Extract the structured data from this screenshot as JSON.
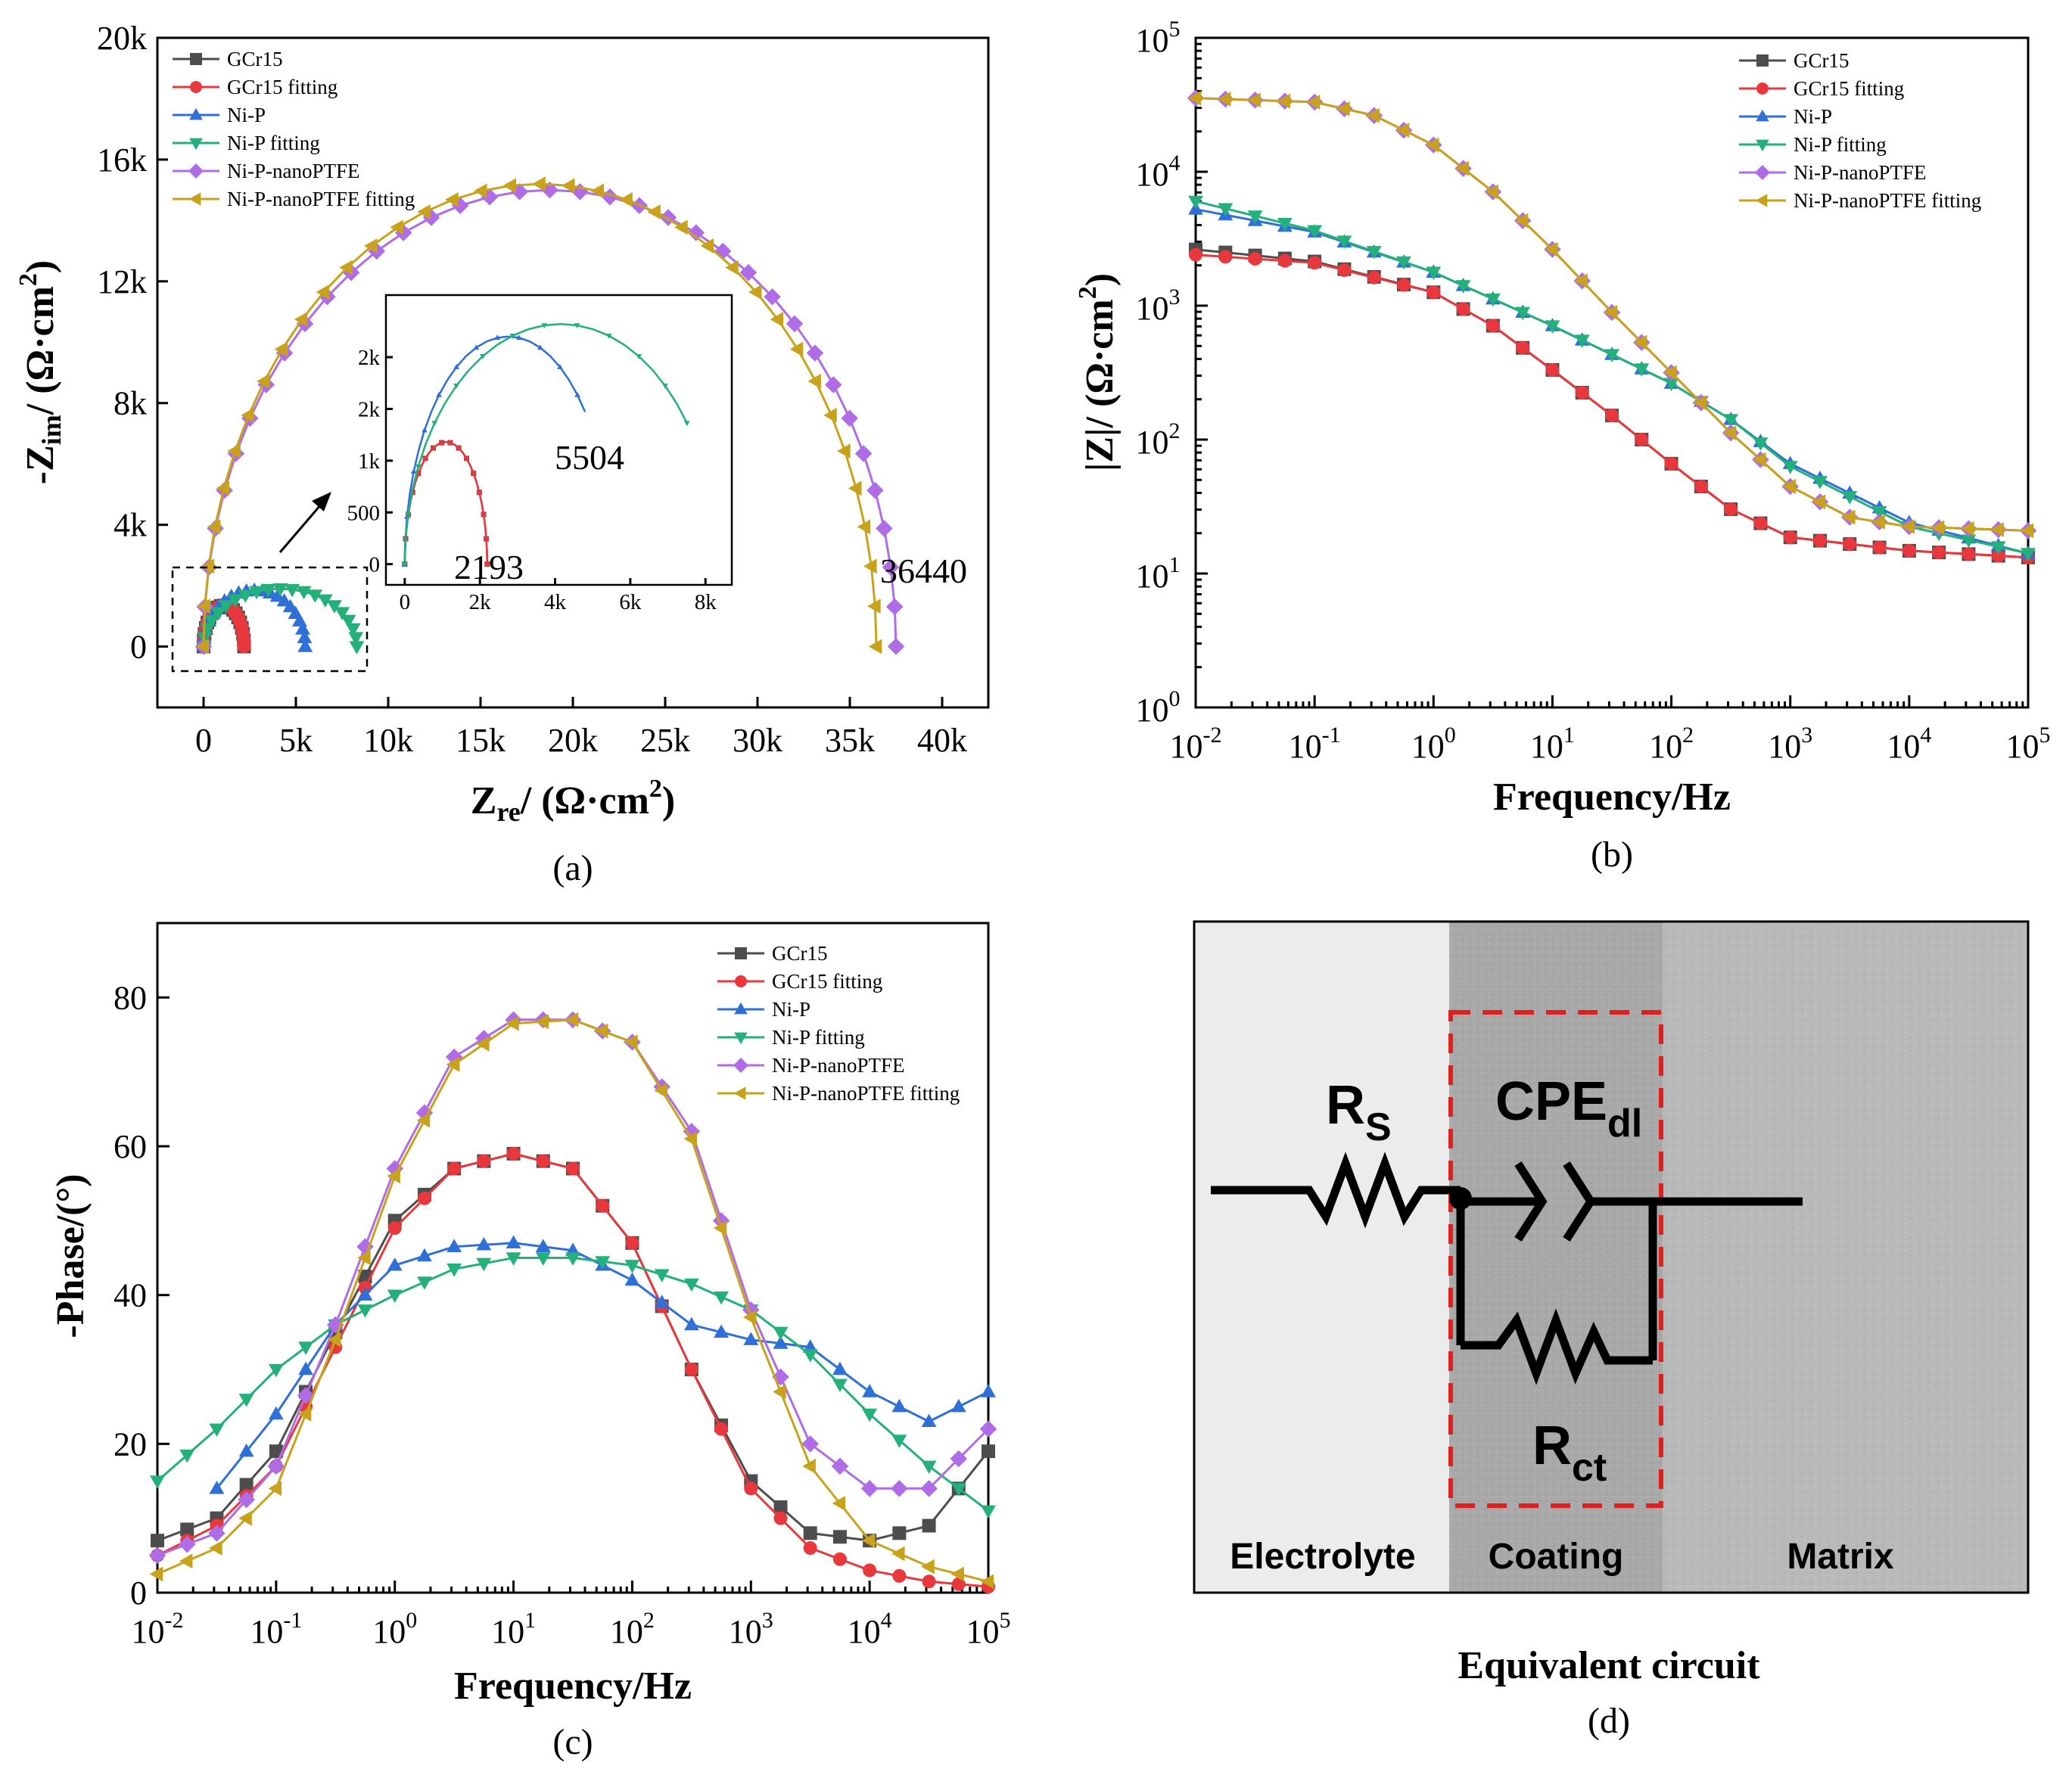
{
  "colors": {
    "GCr15": "#4d4d4d",
    "GCr15 fitting": "#e8383d",
    "Ni-P": "#2f6fd8",
    "Ni-P fitting": "#23b07a",
    "Ni-P-nanoPTFE": "#b06ce6",
    "Ni-P-nanoPTFE fitting": "#c9a21b"
  },
  "chart_data": [
    {
      "panel": "a",
      "type": "scatter",
      "caption": "(a)",
      "xlabel": "Zre/ (Ω·cm2)",
      "ylabel": "-Zim/ (Ω·cm2)",
      "xlim": [
        -2500,
        42500
      ],
      "ylim": [
        -2000,
        20000
      ],
      "x_ticks": [
        "0",
        "5k",
        "10k",
        "15k",
        "20k",
        "25k",
        "30k",
        "35k",
        "40k"
      ],
      "y_ticks": [
        "0",
        "4k",
        "8k",
        "12k",
        "16k",
        "20k"
      ],
      "legend": [
        "GCr15",
        "GCr15 fitting",
        "Ni-P",
        "Ni-P fitting",
        "Ni-P-nanoPTFE",
        "Ni-P-nanoPTFE fitting"
      ],
      "annotations": [
        "36440"
      ],
      "series": [
        {
          "name": "GCr15",
          "semicircle": [
            0,
            2193,
            1350
          ]
        },
        {
          "name": "GCr15 fitting",
          "semicircle": [
            0,
            2193,
            1350
          ]
        },
        {
          "name": "Ni-P",
          "semicircle": [
            0,
            5504,
            1850
          ]
        },
        {
          "name": "Ni-P fitting",
          "semicircle": [
            0,
            8300,
            1900
          ]
        },
        {
          "name": "Ni-P-nanoPTFE",
          "semicircle": [
            0,
            37500,
            15000
          ]
        },
        {
          "name": "Ni-P-nanoPTFE fitting",
          "semicircle": [
            0,
            36440,
            15200
          ]
        }
      ],
      "inset": {
        "xlim": [
          -500,
          8700
        ],
        "ylim": [
          -200,
          2600
        ],
        "x_ticks": [
          "0",
          "2k",
          "4k",
          "6k",
          "8k"
        ],
        "y_ticks": [
          "0",
          "500",
          "1k",
          "2k",
          "2k"
        ],
        "annotations": [
          "5504",
          "2193"
        ]
      }
    },
    {
      "panel": "b",
      "type": "line",
      "caption": "(b)",
      "xlabel": "Frequency/Hz",
      "ylabel": "|Z|/ (Ω·cm2)",
      "xscale": "log",
      "yscale": "log",
      "xlim": [
        0.01,
        100000
      ],
      "ylim": [
        1,
        100000
      ],
      "x_ticks": [
        "10-2",
        "10-1",
        "100",
        "101",
        "102",
        "103",
        "104",
        "105"
      ],
      "y_ticks": [
        "100",
        "101",
        "102",
        "103",
        "104",
        "105"
      ],
      "legend": [
        "GCr15",
        "GCr15 fitting",
        "Ni-P",
        "Ni-P fitting",
        "Ni-P-nanoPTFE",
        "Ni-P-nanoPTFE fitting"
      ],
      "series": [
        {
          "name": "GCr15",
          "logx": [
            -2,
            -1,
            0,
            0.5,
            1,
            1.5,
            2,
            2.5,
            3,
            4,
            5
          ],
          "logy": [
            3.42,
            3.33,
            3.1,
            2.85,
            2.52,
            2.18,
            1.82,
            1.48,
            1.27,
            1.17,
            1.12
          ]
        },
        {
          "name": "GCr15 fitting",
          "logx": [
            -2,
            -1,
            0,
            0.5,
            1,
            1.5,
            2,
            2.5,
            3,
            4,
            5
          ],
          "logy": [
            3.38,
            3.32,
            3.1,
            2.85,
            2.52,
            2.18,
            1.82,
            1.48,
            1.27,
            1.17,
            1.12
          ]
        },
        {
          "name": "Ni-P",
          "logx": [
            -2,
            -1,
            0,
            1,
            2,
            2.5,
            3,
            4,
            5
          ],
          "logy": [
            3.72,
            3.55,
            3.25,
            2.85,
            2.42,
            2.15,
            1.82,
            1.38,
            1.15
          ]
        },
        {
          "name": "Ni-P fitting",
          "logx": [
            -2,
            -1,
            0,
            1,
            2,
            2.5,
            3,
            4,
            5
          ],
          "logy": [
            3.78,
            3.56,
            3.25,
            2.85,
            2.42,
            2.15,
            1.8,
            1.35,
            1.15
          ]
        },
        {
          "name": "Ni-P-nanoPTFE",
          "logx": [
            -2,
            -1,
            -0.5,
            0,
            0.5,
            1,
            1.5,
            2,
            2.5,
            3,
            3.5,
            4,
            5
          ],
          "logy": [
            4.55,
            4.52,
            4.42,
            4.2,
            3.85,
            3.42,
            2.95,
            2.5,
            2.05,
            1.65,
            1.42,
            1.35,
            1.32
          ]
        },
        {
          "name": "Ni-P-nanoPTFE fitting",
          "logx": [
            -2,
            -1,
            -0.5,
            0,
            0.5,
            1,
            1.5,
            2,
            2.5,
            3,
            3.5,
            4,
            5
          ],
          "logy": [
            4.55,
            4.52,
            4.42,
            4.2,
            3.85,
            3.42,
            2.95,
            2.5,
            2.05,
            1.65,
            1.42,
            1.35,
            1.32
          ]
        }
      ]
    },
    {
      "panel": "c",
      "type": "line",
      "caption": "(c)",
      "xlabel": "Frequency/Hz",
      "ylabel": "-Phase/(°)",
      "xscale": "log",
      "xlim": [
        0.01,
        100000
      ],
      "ylim": [
        0,
        90
      ],
      "x_ticks": [
        "10-2",
        "10-1",
        "100",
        "101",
        "102",
        "103",
        "104",
        "105"
      ],
      "y_ticks": [
        "0",
        "20",
        "40",
        "60",
        "80"
      ],
      "legend": [
        "GCr15",
        "GCr15 fitting",
        "Ni-P",
        "Ni-P fitting",
        "Ni-P-nanoPTFE",
        "Ni-P-nanoPTFE fitting"
      ],
      "series": [
        {
          "name": "GCr15",
          "logx": [
            -2,
            -1.5,
            -1,
            -0.5,
            0,
            0.5,
            1,
            1.5,
            2,
            2.5,
            3,
            3.5,
            4,
            4.5,
            5
          ],
          "y": [
            7,
            10,
            19,
            35,
            50,
            57,
            59,
            57,
            47,
            30,
            15,
            8,
            7,
            9,
            19
          ]
        },
        {
          "name": "GCr15 fitting",
          "logx": [
            -2,
            -1.5,
            -1,
            -0.5,
            0,
            0.5,
            1,
            1.5,
            2,
            2.5,
            3,
            3.5,
            4,
            4.5,
            5
          ],
          "y": [
            5,
            9,
            17,
            33,
            49,
            57,
            59,
            57,
            47,
            30,
            14,
            6,
            3,
            1.5,
            0.8
          ]
        },
        {
          "name": "Ni-P",
          "logx": [
            -1.5,
            -1,
            -0.5,
            0,
            0.5,
            1,
            1.5,
            2,
            2.5,
            3,
            3.5,
            4,
            4.5,
            5
          ],
          "y": [
            14,
            24,
            36,
            44,
            46.5,
            47,
            46,
            42,
            36,
            34,
            33,
            27,
            23,
            27
          ]
        },
        {
          "name": "Ni-P fitting",
          "logx": [
            -2,
            -1.5,
            -1,
            -0.5,
            0,
            0.5,
            1,
            1.5,
            2,
            2.5,
            3,
            3.5,
            4,
            4.5,
            5
          ],
          "y": [
            15,
            22,
            30,
            36,
            40,
            43.5,
            45,
            45,
            44,
            41.5,
            38,
            32,
            24,
            17,
            11
          ]
        },
        {
          "name": "Ni-P-nanoPTFE",
          "logx": [
            -2,
            -1.5,
            -1,
            -0.5,
            0,
            0.5,
            1,
            1.5,
            2,
            2.5,
            3,
            3.5,
            4,
            4.5,
            5
          ],
          "y": [
            5,
            8,
            17,
            36,
            57,
            72,
            77,
            77,
            74,
            62,
            38,
            20,
            14,
            14,
            22
          ]
        },
        {
          "name": "Ni-P-nanoPTFE fitting",
          "logx": [
            -2,
            -1.5,
            -1,
            -0.5,
            0,
            0.5,
            1,
            1.5,
            2,
            2.5,
            3,
            3.5,
            4,
            4.5,
            5
          ],
          "y": [
            2.5,
            6,
            14,
            34,
            56,
            71,
            76.5,
            77,
            74,
            61,
            37,
            17,
            7,
            3.5,
            1.5
          ]
        }
      ]
    }
  ],
  "circuit": {
    "caption": "(d)",
    "title": "Equivalent circuit",
    "labels": {
      "rs": "R",
      "rs_sub": "S",
      "cpe": "CPE",
      "cpe_sub": "dl",
      "rct": "R",
      "rct_sub": "ct"
    },
    "regions": [
      "Electrolyte",
      "Coating",
      "Matrix"
    ]
  }
}
